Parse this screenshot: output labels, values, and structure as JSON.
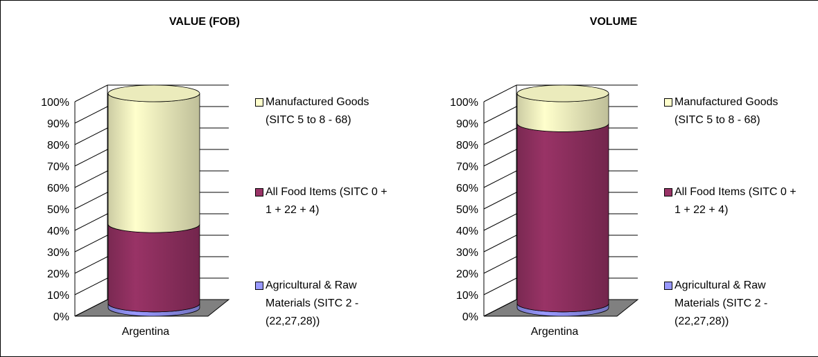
{
  "chart_data": [
    {
      "type": "bar",
      "title": "VALUE (FOB)",
      "categories": [
        "Argentina"
      ],
      "series": [
        {
          "name": "Agricultural & Raw Materials (SITC 2 - (22,27,28))",
          "color": "#9999ff",
          "values": [
            2
          ]
        },
        {
          "name": "All Food Items (SITC 0 + 1 + 22 + 4)",
          "color": "#993366",
          "values": [
            37
          ]
        },
        {
          "name": "Manufactured Goods (SITC 5 to 8 - 68)",
          "color": "#ffffcc",
          "values": [
            61
          ]
        }
      ],
      "ylim": [
        0,
        100
      ],
      "yticks": [
        {
          "value": 0,
          "label": "0%"
        },
        {
          "value": 10,
          "label": "10%"
        },
        {
          "value": 20,
          "label": "20%"
        },
        {
          "value": 30,
          "label": "30%"
        },
        {
          "value": 40,
          "label": "40%"
        },
        {
          "value": 50,
          "label": "50%"
        },
        {
          "value": 60,
          "label": "60%"
        },
        {
          "value": 70,
          "label": "70%"
        },
        {
          "value": 80,
          "label": "80%"
        },
        {
          "value": 90,
          "label": "90%"
        },
        {
          "value": 100,
          "label": "100%"
        }
      ],
      "grid": true,
      "stacked": true
    },
    {
      "type": "bar",
      "title": "VOLUME",
      "categories": [
        "Argentina"
      ],
      "series": [
        {
          "name": "Agricultural & Raw Materials (SITC 2 - (22,27,28))",
          "color": "#9999ff",
          "values": [
            2
          ]
        },
        {
          "name": "All Food Items (SITC 0 + 1 + 22 + 4)",
          "color": "#993366",
          "values": [
            84
          ]
        },
        {
          "name": "Manufactured Goods (SITC 5 to 8 - 68)",
          "color": "#ffffcc",
          "values": [
            14
          ]
        }
      ],
      "ylim": [
        0,
        100
      ],
      "yticks": [
        {
          "value": 0,
          "label": "0%"
        },
        {
          "value": 10,
          "label": "10%"
        },
        {
          "value": 20,
          "label": "20%"
        },
        {
          "value": 30,
          "label": "30%"
        },
        {
          "value": 40,
          "label": "40%"
        },
        {
          "value": 50,
          "label": "50%"
        },
        {
          "value": 60,
          "label": "60%"
        },
        {
          "value": 70,
          "label": "70%"
        },
        {
          "value": 80,
          "label": "80%"
        },
        {
          "value": 90,
          "label": "90%"
        },
        {
          "value": 100,
          "label": "100%"
        }
      ],
      "grid": true,
      "stacked": true
    }
  ]
}
